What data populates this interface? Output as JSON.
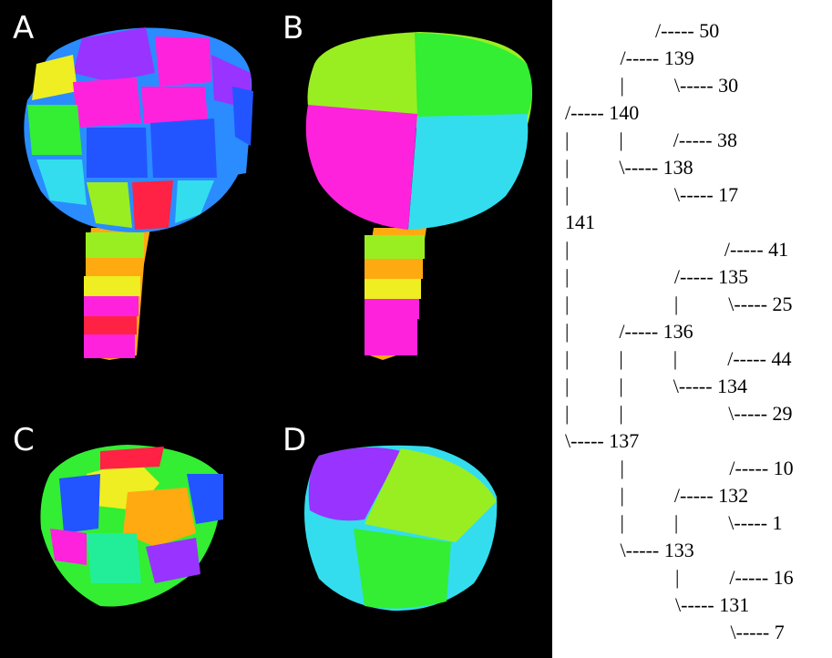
{
  "panels": {
    "a": {
      "label": "A"
    },
    "b": {
      "label": "B"
    },
    "c": {
      "label": "C"
    },
    "d": {
      "label": "D"
    }
  },
  "colors": {
    "background": "#000000",
    "magenta": "#ff22dd",
    "blue": "#2255ff",
    "dodger_blue": "#2a8cff",
    "cyan": "#33ddee",
    "green": "#33ee33",
    "lime": "#99ee22",
    "yellow": "#eeee22",
    "orange": "#ffaa11",
    "red": "#ff2244",
    "purple": "#9933ff",
    "spring_green": "#22ee99"
  },
  "tree": {
    "lines": [
      "                  /----- 50",
      "           /----- 139",
      "           |          \\----- 30",
      "/----- 140",
      "|          |          /----- 38",
      "|          \\----- 138",
      "|                     \\----- 17",
      "141",
      "|                               /----- 41",
      "|                     /----- 135",
      "|                     |          \\----- 25",
      "|          /----- 136",
      "|          |          |          /----- 44",
      "|          |          \\----- 134",
      "|          |                     \\----- 29",
      "\\----- 137",
      "           |                     /----- 10",
      "           |          /----- 132",
      "           |          |          \\----- 1",
      "           \\----- 133",
      "                      |          /----- 16",
      "                      \\----- 131",
      "                                 \\----- 7"
    ]
  }
}
